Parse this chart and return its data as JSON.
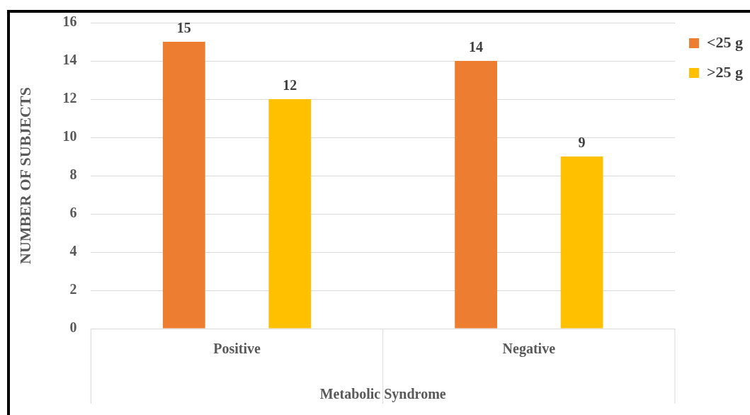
{
  "chart_data": {
    "type": "bar",
    "xlabel": "Metabolic Syndrome",
    "ylabel": "NUMBER OF SUBJECTS",
    "categories": [
      "Positive",
      "Negative"
    ],
    "series": [
      {
        "name": "<25 g",
        "color": "#ed7d31",
        "values": [
          15,
          14
        ]
      },
      {
        "name": ">25 g",
        "color": "#ffc000",
        "values": [
          12,
          9
        ]
      }
    ],
    "ylim": [
      0,
      16
    ],
    "yticks": [
      0,
      2,
      4,
      6,
      8,
      10,
      12,
      14,
      16
    ],
    "grid": "y",
    "legend": "top right",
    "data_labels": true
  }
}
